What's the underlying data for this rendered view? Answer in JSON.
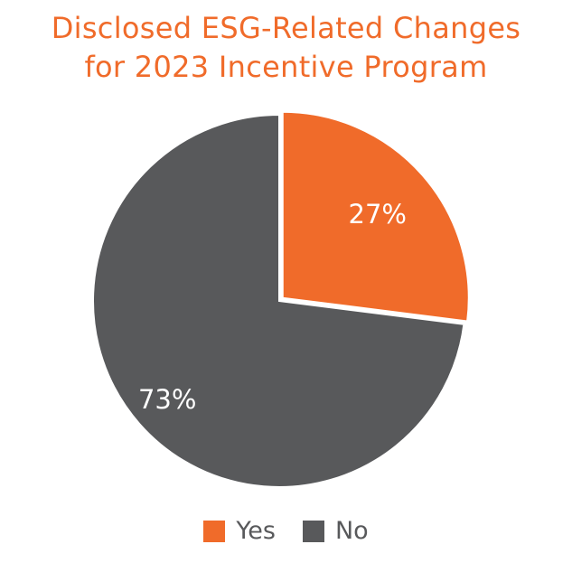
{
  "colors": {
    "title": "#f06b2a",
    "yes": "#f06b2a",
    "no": "#58595b",
    "label": "#ffffff",
    "separator": "#ffffff"
  },
  "chart_data": {
    "type": "pie",
    "title": "Disclosed ESG-Related Changes",
    "subtitle": "for 2023 Incentive Program",
    "categories": [
      "Yes",
      "No"
    ],
    "values": [
      27,
      73
    ],
    "data_labels": [
      "27%",
      "73%"
    ],
    "legend": {
      "placement": "bottom",
      "entries": [
        "Yes",
        "No"
      ]
    }
  }
}
